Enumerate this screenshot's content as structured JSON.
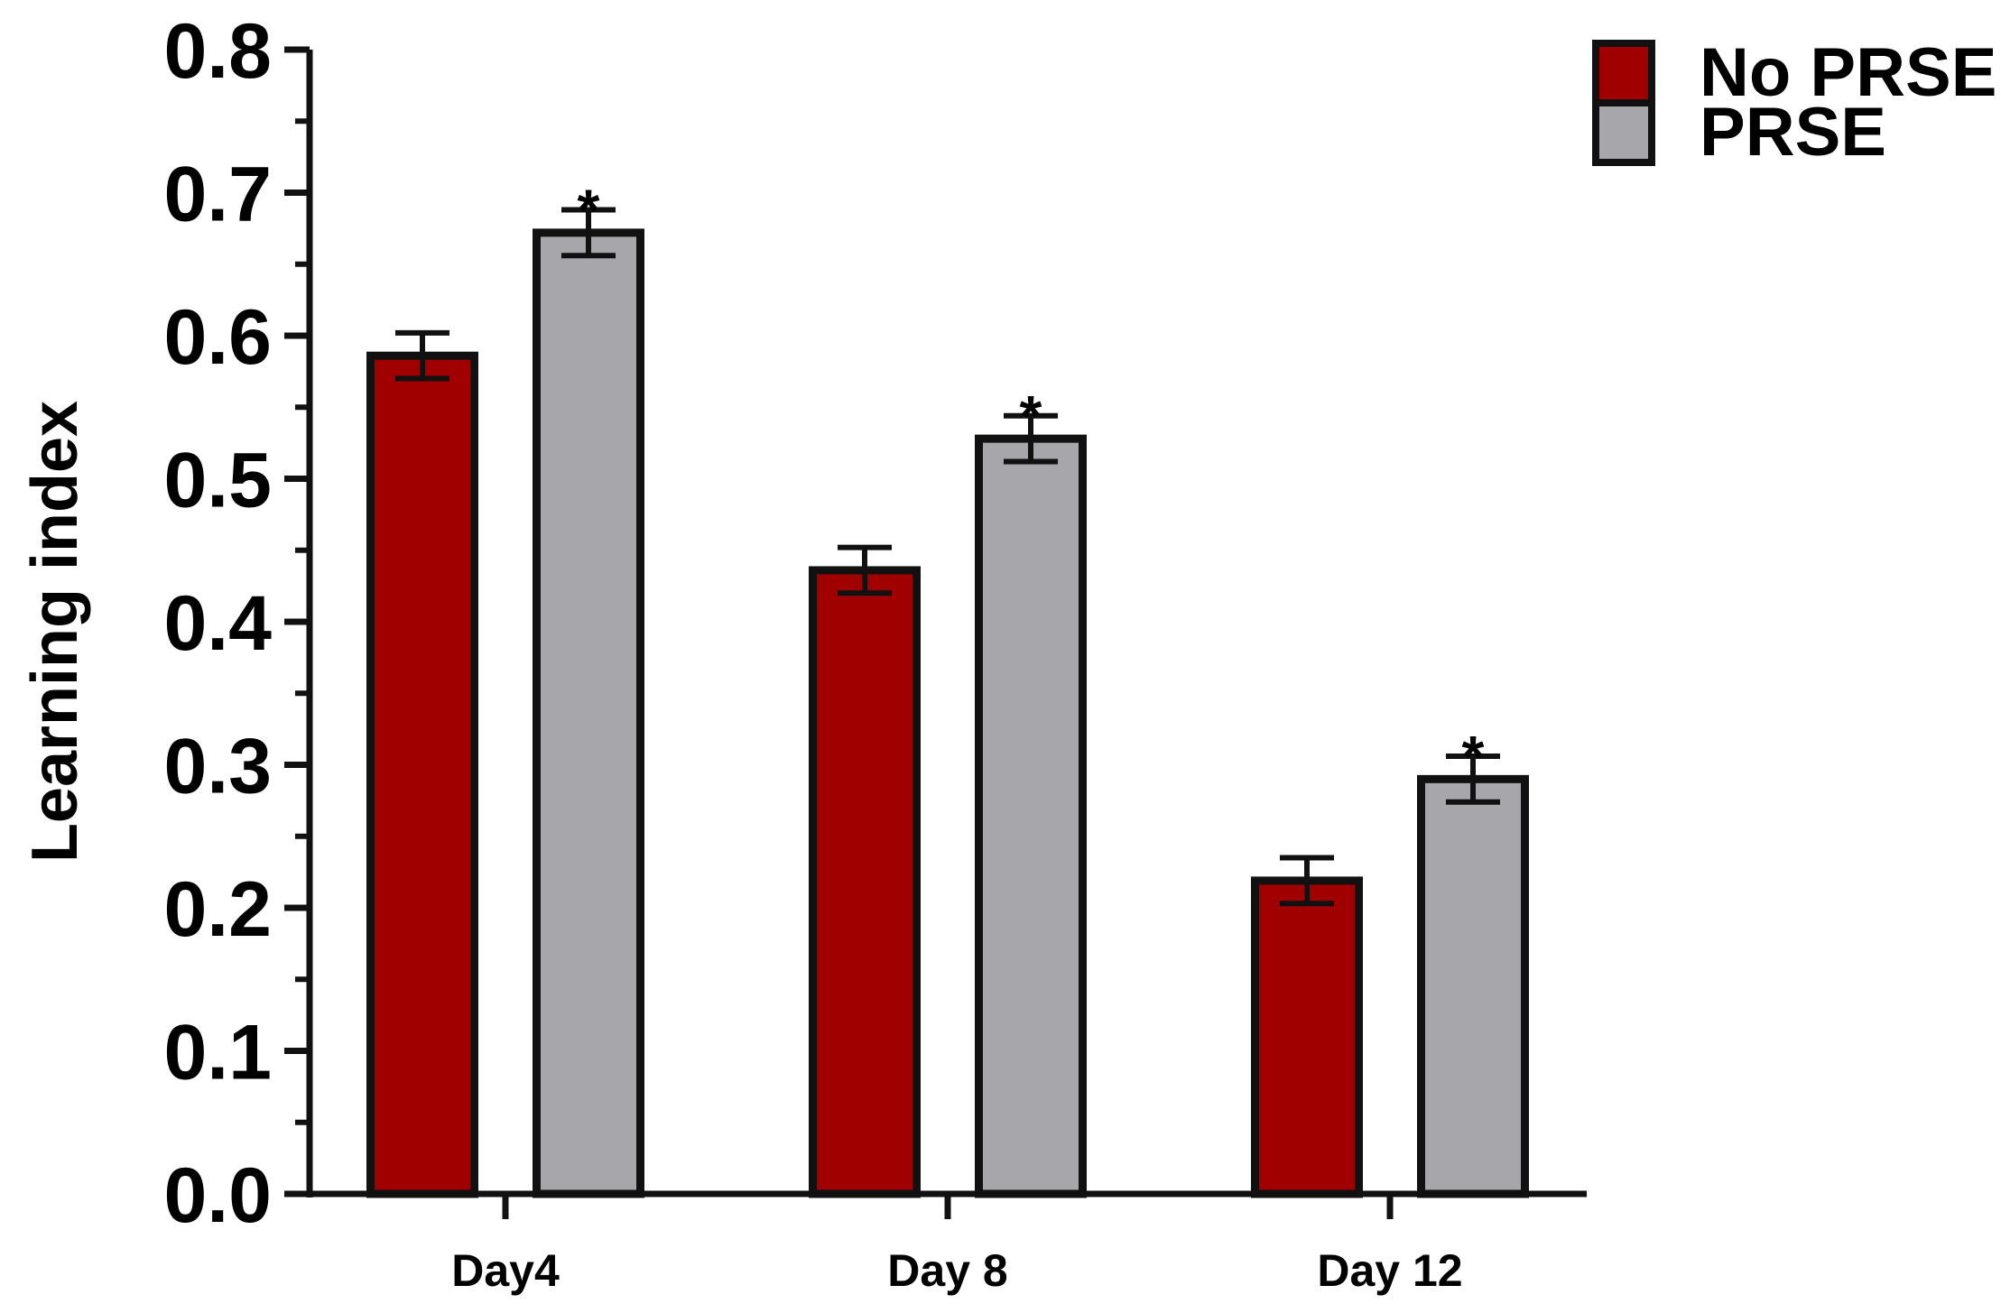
{
  "chart_data": {
    "type": "bar",
    "title": "",
    "xlabel": "",
    "ylabel": "Learning index",
    "ylim": [
      0,
      0.8
    ],
    "yticks": [
      "0.0",
      "0.1",
      "0.2",
      "0.3",
      "0.4",
      "0.5",
      "0.6",
      "0.7",
      "0.8"
    ],
    "categories": [
      "Day4",
      "Day 8",
      "Day 12"
    ],
    "series": [
      {
        "name": "No PRSE",
        "color": "#a00000",
        "values": [
          0.586,
          0.436,
          0.219
        ],
        "errors": [
          0.016,
          0.016,
          0.016
        ],
        "significance": [
          "",
          "",
          ""
        ]
      },
      {
        "name": "PRSE",
        "color": "#a7a6aa",
        "values": [
          0.672,
          0.528,
          0.29
        ],
        "errors": [
          0.016,
          0.016,
          0.016
        ],
        "significance": [
          "*",
          "*",
          "*"
        ]
      }
    ],
    "legend_position": "top-right",
    "grid": false
  }
}
